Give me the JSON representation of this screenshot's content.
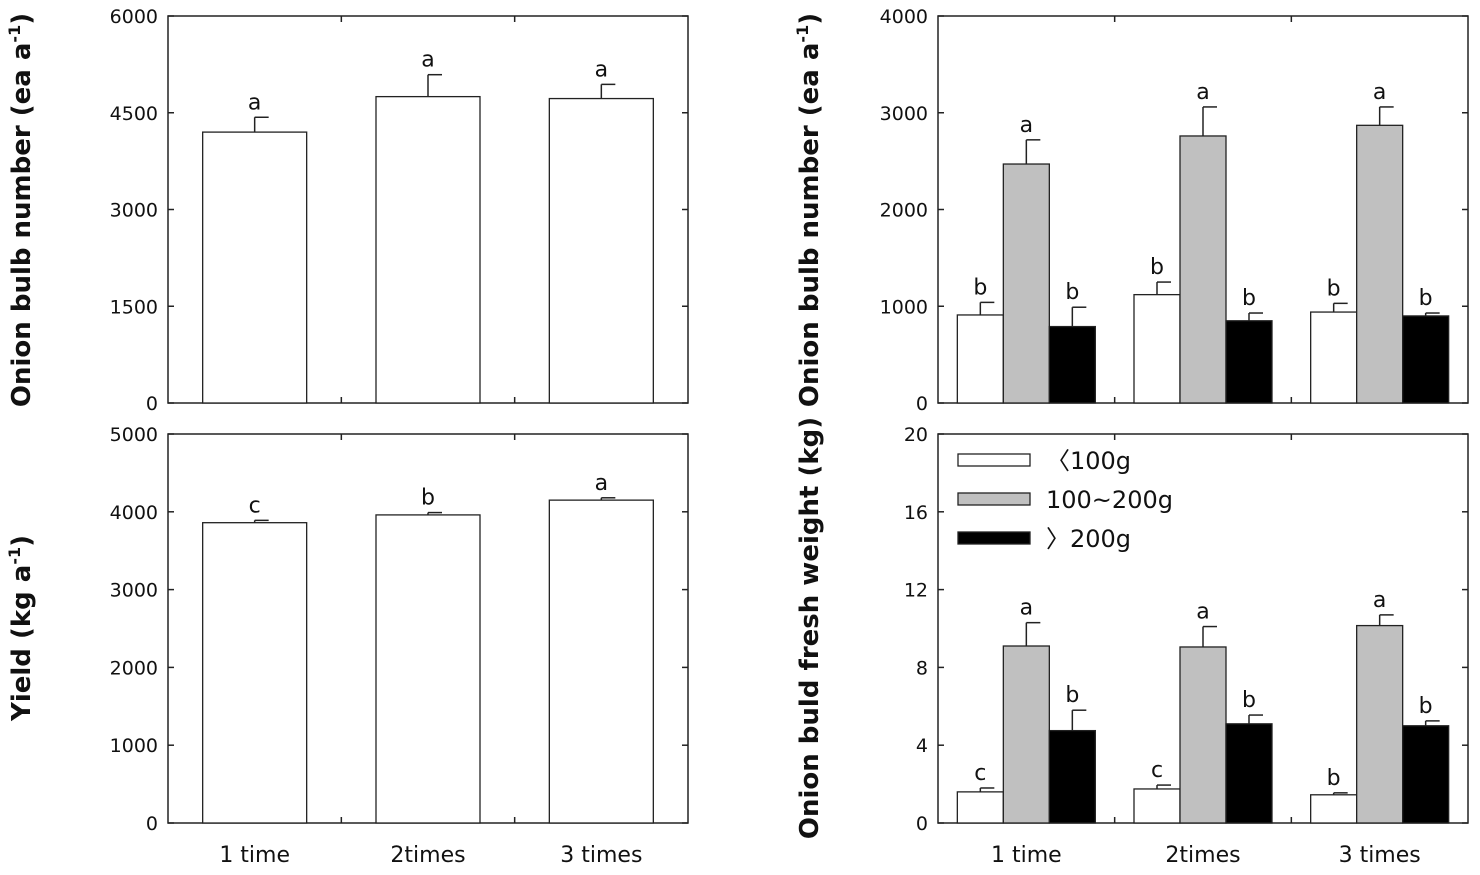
{
  "chart_data": [
    {
      "id": "top-left",
      "type": "bar",
      "categories": [
        "1 time",
        "2times",
        "3 times"
      ],
      "series": [
        {
          "name": "",
          "color": "#ffffff",
          "values": [
            4200,
            4750,
            4720
          ],
          "errors": [
            230,
            340,
            220
          ],
          "sig": [
            "a",
            "a",
            "a"
          ]
        }
      ],
      "ylabel": "Onion bulb number (ea a",
      "ylabel_sup": "-1",
      "ylabel_tail": ")",
      "ylim": [
        0,
        6000
      ],
      "yticks": [
        "0",
        "1500",
        "3000",
        "4500",
        "6000"
      ],
      "show_categories": false
    },
    {
      "id": "top-right",
      "type": "bar",
      "categories": [
        "1 time",
        "2times",
        "3 times"
      ],
      "series": [
        {
          "name": "<100g",
          "color": "#ffffff",
          "values": [
            910,
            1120,
            940
          ],
          "errors": [
            130,
            130,
            90
          ],
          "sig": [
            "b",
            "b",
            "b"
          ]
        },
        {
          "name": "100~200g",
          "color": "#c0c0c0",
          "values": [
            2470,
            2760,
            2870
          ],
          "errors": [
            250,
            300,
            190
          ],
          "sig": [
            "a",
            "a",
            "a"
          ]
        },
        {
          "name": ">200g",
          "color": "#000000",
          "values": [
            790,
            850,
            900
          ],
          "errors": [
            200,
            80,
            30
          ],
          "sig": [
            "b",
            "b",
            "b"
          ]
        }
      ],
      "ylabel": "Onion bulb number (ea a",
      "ylabel_sup": "-1",
      "ylabel_tail": ")",
      "ylim": [
        0,
        4000
      ],
      "yticks": [
        "0",
        "1000",
        "2000",
        "3000",
        "4000"
      ],
      "show_categories": false
    },
    {
      "id": "bottom-left",
      "type": "bar",
      "categories": [
        "1 time",
        "2times",
        "3 times"
      ],
      "series": [
        {
          "name": "",
          "color": "#ffffff",
          "values": [
            3860,
            3960,
            4150
          ],
          "errors": [
            30,
            30,
            30
          ],
          "sig": [
            "c",
            "b",
            "a"
          ]
        }
      ],
      "ylabel": "Yield (kg a",
      "ylabel_sup": "-1",
      "ylabel_tail": ")",
      "ylim": [
        0,
        5000
      ],
      "yticks": [
        "0",
        "1000",
        "2000",
        "3000",
        "4000",
        "5000"
      ],
      "show_categories": true
    },
    {
      "id": "bottom-right",
      "type": "bar",
      "categories": [
        "1 time",
        "2times",
        "3 times"
      ],
      "series": [
        {
          "name": "<100g",
          "color": "#ffffff",
          "values": [
            1.6,
            1.75,
            1.45
          ],
          "errors": [
            0.2,
            0.2,
            0.1
          ],
          "sig": [
            "c",
            "c",
            "b"
          ]
        },
        {
          "name": "100~200g",
          "color": "#c0c0c0",
          "values": [
            9.1,
            9.05,
            10.15
          ],
          "errors": [
            1.2,
            1.05,
            0.55
          ],
          "sig": [
            "a",
            "a",
            "a"
          ]
        },
        {
          "name": ">200g",
          "color": "#000000",
          "values": [
            4.75,
            5.1,
            5.0
          ],
          "errors": [
            1.05,
            0.45,
            0.25
          ],
          "sig": [
            "b",
            "b",
            "b"
          ]
        }
      ],
      "ylabel": "Onion buld fresh weight (kg)",
      "ylabel_sup": "",
      "ylabel_tail": "",
      "ylim": [
        0,
        20
      ],
      "yticks": [
        "0",
        "4",
        "8",
        "12",
        "16",
        "20"
      ],
      "show_categories": true,
      "legend": {
        "position": "top-left",
        "entries": [
          {
            "label": "〈100g",
            "color": "#ffffff"
          },
          {
            "label": "100~200g",
            "color": "#c0c0c0"
          },
          {
            "label": "〉200g",
            "color": "#000000"
          }
        ]
      }
    }
  ]
}
